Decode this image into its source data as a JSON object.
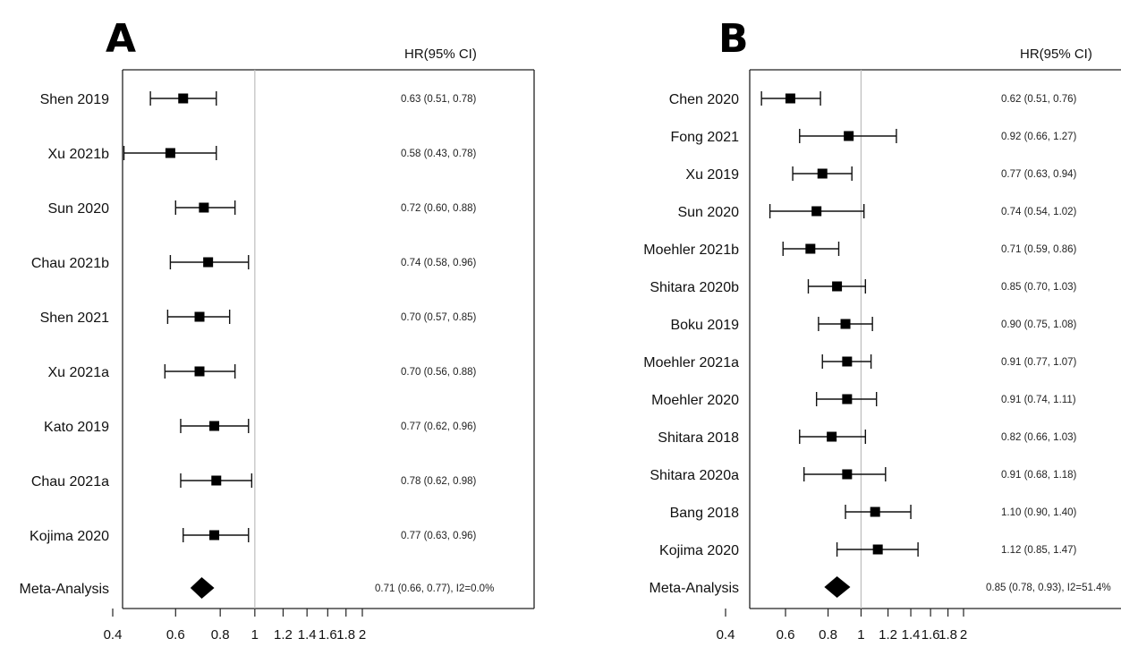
{
  "chart_data": [
    {
      "type": "forest",
      "panel_label": "A",
      "header": "HR(95% CI)",
      "x_scale": "log",
      "xlim": [
        0.4,
        2
      ],
      "x_ticks": [
        "0.4",
        "0.6",
        "0.8",
        "1",
        "1.2",
        "1.4",
        "1.6",
        "1.8",
        "2"
      ],
      "x_tick_values": [
        0.4,
        0.6,
        0.8,
        1,
        1.2,
        1.4,
        1.6,
        1.8,
        2
      ],
      "reference_line": 1,
      "studies": [
        {
          "name": "Shen 2019",
          "hr": 0.63,
          "lo": 0.51,
          "hi": 0.78,
          "text": "0.63 (0.51, 0.78)"
        },
        {
          "name": "Xu 2021b",
          "hr": 0.58,
          "lo": 0.43,
          "hi": 0.78,
          "text": "0.58 (0.43, 0.78)"
        },
        {
          "name": "Sun 2020",
          "hr": 0.72,
          "lo": 0.6,
          "hi": 0.88,
          "text": "0.72 (0.60, 0.88)"
        },
        {
          "name": "Chau 2021b",
          "hr": 0.74,
          "lo": 0.58,
          "hi": 0.96,
          "text": "0.74 (0.58, 0.96)"
        },
        {
          "name": "Shen 2021",
          "hr": 0.7,
          "lo": 0.57,
          "hi": 0.85,
          "text": "0.70 (0.57, 0.85)"
        },
        {
          "name": "Xu 2021a",
          "hr": 0.7,
          "lo": 0.56,
          "hi": 0.88,
          "text": "0.70 (0.56, 0.88)"
        },
        {
          "name": "Kato 2019",
          "hr": 0.77,
          "lo": 0.62,
          "hi": 0.96,
          "text": "0.77 (0.62, 0.96)"
        },
        {
          "name": "Chau 2021a",
          "hr": 0.78,
          "lo": 0.62,
          "hi": 0.98,
          "text": "0.78 (0.62, 0.98)"
        },
        {
          "name": "Kojima 2020",
          "hr": 0.77,
          "lo": 0.63,
          "hi": 0.96,
          "text": "0.77 (0.63, 0.96)"
        }
      ],
      "summary": {
        "name": "Meta-Analysis",
        "hr": 0.71,
        "lo": 0.66,
        "hi": 0.77,
        "text": "0.71 (0.66, 0.77), I2=0.0%"
      }
    },
    {
      "type": "forest",
      "panel_label": "B",
      "header": "HR(95% CI)",
      "x_scale": "log",
      "xlim": [
        0.4,
        2
      ],
      "x_ticks": [
        "0.4",
        "0.6",
        "0.8",
        "1",
        "1.2",
        "1.4",
        "1.6",
        "1.8",
        "2"
      ],
      "x_tick_values": [
        0.4,
        0.6,
        0.8,
        1,
        1.2,
        1.4,
        1.6,
        1.8,
        2
      ],
      "reference_line": 1,
      "studies": [
        {
          "name": "Chen 2020",
          "hr": 0.62,
          "lo": 0.51,
          "hi": 0.76,
          "text": "0.62 (0.51, 0.76)"
        },
        {
          "name": "Fong 2021",
          "hr": 0.92,
          "lo": 0.66,
          "hi": 1.27,
          "text": "0.92 (0.66, 1.27)"
        },
        {
          "name": "Xu 2019",
          "hr": 0.77,
          "lo": 0.63,
          "hi": 0.94,
          "text": "0.77 (0.63, 0.94)"
        },
        {
          "name": "Sun 2020",
          "hr": 0.74,
          "lo": 0.54,
          "hi": 1.02,
          "text": "0.74 (0.54, 1.02)"
        },
        {
          "name": "Moehler 2021b",
          "hr": 0.71,
          "lo": 0.59,
          "hi": 0.86,
          "text": "0.71 (0.59, 0.86)"
        },
        {
          "name": "Shitara 2020b",
          "hr": 0.85,
          "lo": 0.7,
          "hi": 1.03,
          "text": "0.85 (0.70, 1.03)"
        },
        {
          "name": "Boku 2019",
          "hr": 0.9,
          "lo": 0.75,
          "hi": 1.08,
          "text": "0.90 (0.75, 1.08)"
        },
        {
          "name": "Moehler 2021a",
          "hr": 0.91,
          "lo": 0.77,
          "hi": 1.07,
          "text": "0.91 (0.77, 1.07)"
        },
        {
          "name": "Moehler 2020",
          "hr": 0.91,
          "lo": 0.74,
          "hi": 1.11,
          "text": "0.91 (0.74, 1.11)"
        },
        {
          "name": "Shitara 2018",
          "hr": 0.82,
          "lo": 0.66,
          "hi": 1.03,
          "text": "0.82 (0.66, 1.03)"
        },
        {
          "name": "Shitara 2020a",
          "hr": 0.91,
          "lo": 0.68,
          "hi": 1.18,
          "text": "0.91 (0.68, 1.18)"
        },
        {
          "name": "Bang 2018",
          "hr": 1.1,
          "lo": 0.9,
          "hi": 1.4,
          "text": "1.10 (0.90, 1.40)"
        },
        {
          "name": "Kojima 2020",
          "hr": 1.12,
          "lo": 0.85,
          "hi": 1.47,
          "text": "1.12 (0.85, 1.47)"
        }
      ],
      "summary": {
        "name": "Meta-Analysis",
        "hr": 0.85,
        "lo": 0.78,
        "hi": 0.93,
        "text": "0.85 (0.78, 0.93), I2=51.4%"
      }
    }
  ]
}
